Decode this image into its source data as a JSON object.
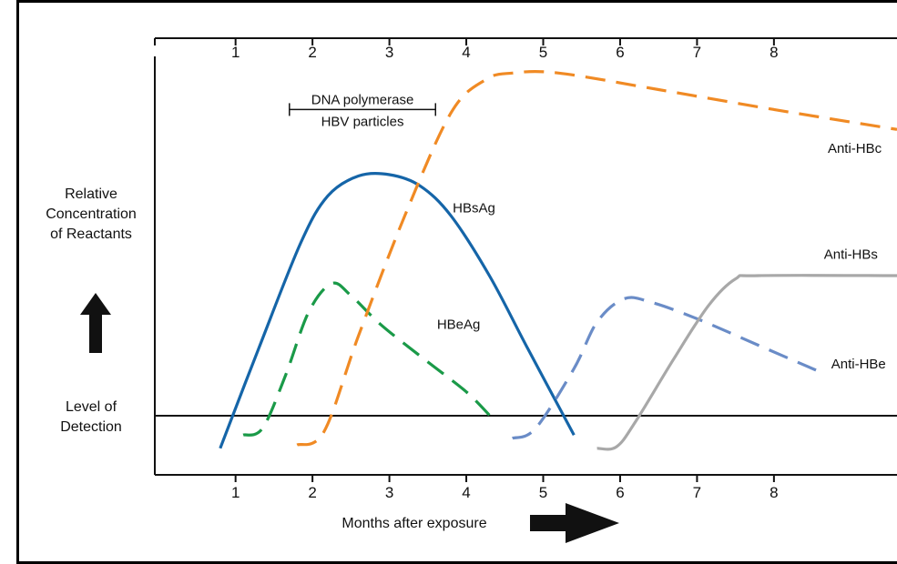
{
  "chart_data": {
    "type": "line",
    "title": "",
    "xlabel": "Months after  exposure",
    "ylabel_lines": [
      "Relative",
      "Concentration",
      "of Reactants"
    ],
    "detection_label_lines": [
      "Level of",
      "Detection"
    ],
    "x_ticks": [
      "1",
      "2",
      "3",
      "4",
      "5",
      "6",
      "7",
      "8"
    ],
    "top_ticks": [
      "1",
      "2",
      "3",
      "4",
      "5",
      "6",
      "7",
      "8"
    ],
    "xlim": [
      -0.05,
      9.6
    ],
    "ylim": [
      -0.5,
      5.8
    ],
    "detection_level": 0.6,
    "annotation": {
      "lines": [
        "DNA polymerase",
        "HBV particles"
      ],
      "x_range": [
        1.7,
        3.6
      ],
      "y": 5.0
    },
    "grid": false,
    "series": [
      {
        "name": "HBsAg",
        "color": "#1565a8",
        "dash": "solid",
        "label_at": [
          4.1,
          3.45
        ],
        "points": [
          [
            0.8,
            -0.1
          ],
          [
            1.3,
            1.4
          ],
          [
            1.85,
            3.0
          ],
          [
            2.2,
            3.7
          ],
          [
            2.6,
            4.0
          ],
          [
            3.0,
            4.02
          ],
          [
            3.4,
            3.85
          ],
          [
            3.8,
            3.4
          ],
          [
            4.3,
            2.5
          ],
          [
            4.8,
            1.4
          ],
          [
            5.4,
            0.1
          ]
        ]
      },
      {
        "name": "HBeAg",
        "color": "#1a9a48",
        "dash": "dashed",
        "label_at": [
          3.9,
          1.7
        ],
        "points": [
          [
            1.1,
            0.1
          ],
          [
            1.35,
            0.2
          ],
          [
            1.65,
            1.0
          ],
          [
            1.95,
            1.95
          ],
          [
            2.25,
            2.38
          ],
          [
            2.5,
            2.2
          ],
          [
            2.9,
            1.75
          ],
          [
            3.5,
            1.2
          ],
          [
            4.0,
            0.75
          ],
          [
            4.3,
            0.4
          ]
        ]
      },
      {
        "name": "Anti-HBc",
        "color": "#f08a24",
        "dash": "dashed",
        "label_at": [
          9.05,
          4.35
        ],
        "points": [
          [
            1.8,
            -0.05
          ],
          [
            2.15,
            0.15
          ],
          [
            2.6,
            1.6
          ],
          [
            3.2,
            3.4
          ],
          [
            3.8,
            4.95
          ],
          [
            4.25,
            5.45
          ],
          [
            4.6,
            5.55
          ],
          [
            5.2,
            5.55
          ],
          [
            6.5,
            5.3
          ],
          [
            8.0,
            5.0
          ],
          [
            9.6,
            4.7
          ]
        ]
      },
      {
        "name": "Anti-HBe",
        "color": "#6a8cc7",
        "dash": "dashed",
        "label_at": [
          9.1,
          1.1
        ],
        "points": [
          [
            4.6,
            0.05
          ],
          [
            4.9,
            0.2
          ],
          [
            5.4,
            1.1
          ],
          [
            5.7,
            1.8
          ],
          [
            6.05,
            2.15
          ],
          [
            6.4,
            2.1
          ],
          [
            7.0,
            1.85
          ],
          [
            7.8,
            1.45
          ],
          [
            8.6,
            1.05
          ]
        ]
      },
      {
        "name": "Anti-HBs",
        "color": "#a8a8a8",
        "dash": "solid",
        "label_at": [
          9.0,
          2.75
        ],
        "points": [
          [
            5.7,
            -0.1
          ],
          [
            5.95,
            -0.08
          ],
          [
            6.2,
            0.3
          ],
          [
            6.7,
            1.25
          ],
          [
            7.15,
            2.05
          ],
          [
            7.5,
            2.45
          ],
          [
            7.8,
            2.5
          ],
          [
            9.6,
            2.5
          ]
        ]
      }
    ]
  }
}
